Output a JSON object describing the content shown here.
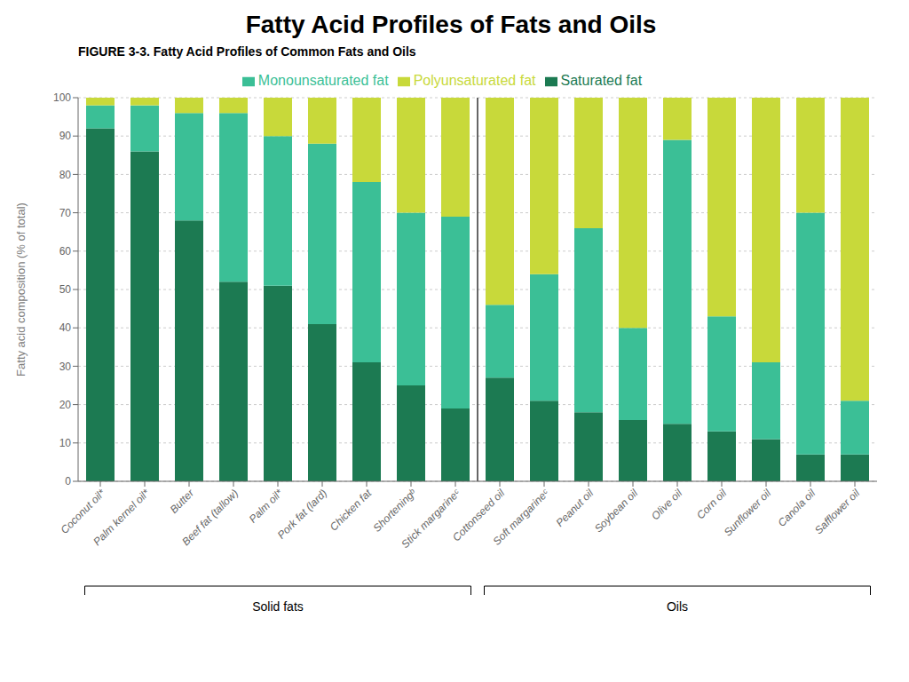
{
  "chart_data": {
    "type": "bar",
    "title": "Fatty Acid Profiles of Fats and Oils",
    "subtitle": "FIGURE 3-3. Fatty Acid Profiles of Common Fats and Oils",
    "ylabel": "Fatty acid composition (% of total)",
    "categories": [
      "Coconut oil*",
      "Palm kernel oil*",
      "Butter",
      "Beef fat (tallow)",
      "Palm oil*",
      "Pork fat (lard)",
      "Chicken fat",
      "Shorteningᵇ",
      "Stick margarineᶜ",
      "Cottonseed oil",
      "Soft margarineᶜ",
      "Peanut oil",
      "Soybean oil",
      "Olive oil",
      "Corn oil",
      "Sunflower oil",
      "Canola oil",
      "Safflower oil"
    ],
    "series": [
      {
        "name": "Saturated fat",
        "color": "#1c7a52",
        "values": [
          92,
          86,
          68,
          52,
          51,
          41,
          31,
          25,
          19,
          27,
          21,
          18,
          16,
          15,
          13,
          11,
          7,
          7
        ]
      },
      {
        "name": "Monounsaturated fat",
        "color": "#3bbf96",
        "values": [
          6,
          12,
          28,
          44,
          39,
          47,
          47,
          45,
          50,
          19,
          33,
          48,
          24,
          74,
          30,
          20,
          63,
          14
        ]
      },
      {
        "name": "Polyunsaturated fat",
        "color": "#c8d93a",
        "values": [
          2,
          2,
          4,
          4,
          10,
          12,
          22,
          30,
          31,
          54,
          46,
          34,
          60,
          11,
          57,
          69,
          30,
          79
        ]
      }
    ],
    "stacked": true,
    "ylim": [
      0,
      100
    ],
    "yticks": [
      0,
      10,
      20,
      30,
      40,
      50,
      60,
      70,
      80,
      90,
      100
    ],
    "grid": true,
    "legend": "top",
    "annotations": [
      {
        "text": "Solid fats",
        "from": "Coconut oil*",
        "to": "Stick margarineᶜ"
      },
      {
        "text": "Oils",
        "from": "Cottonseed oil",
        "to": "Safflower oil"
      }
    ]
  }
}
